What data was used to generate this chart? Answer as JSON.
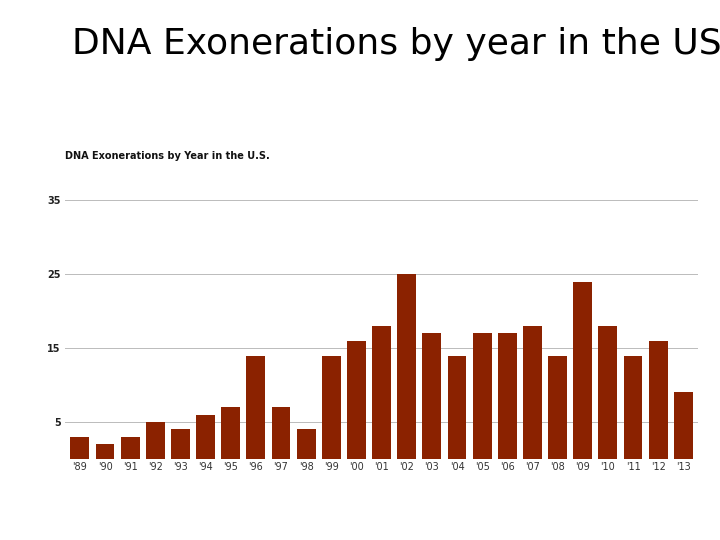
{
  "title_main": "DNA Exonerations by year in the US",
  "chart_subtitle": "DNA Exonerations by Year in the U.S.",
  "years": [
    "'89",
    "'90",
    "'91",
    "'92",
    "'93",
    "'94",
    "'95",
    "'96",
    "'97",
    "'98",
    "'99",
    "'00",
    "'01",
    "'02",
    "'03",
    "'04",
    "'05",
    "'06",
    "'07",
    "'08",
    "'09",
    "'10",
    "'11",
    "'12",
    "'13"
  ],
  "values": [
    3,
    2,
    3,
    5,
    4,
    6,
    7,
    14,
    7,
    4,
    14,
    16,
    18,
    25,
    17,
    14,
    17,
    17,
    18,
    14,
    24,
    18,
    14,
    16,
    9
  ],
  "bar_color": "#8B2200",
  "yticks": [
    5,
    15,
    25,
    35
  ],
  "ylim": [
    0,
    38
  ],
  "background_color": "#ffffff",
  "grid_color": "#bbbbbb",
  "subtitle_fontsize": 7,
  "title_fontsize": 26,
  "tick_fontsize": 7
}
